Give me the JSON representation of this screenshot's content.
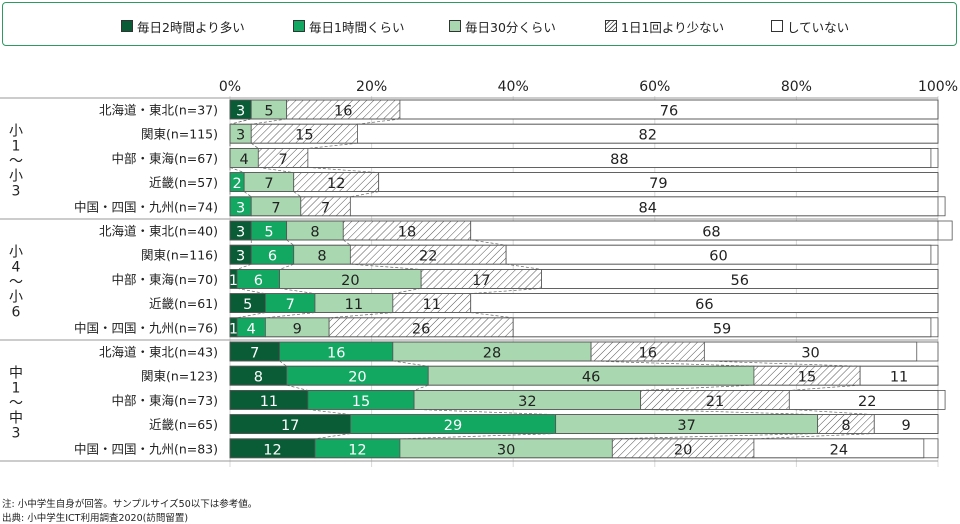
{
  "legend": [
    {
      "label": "毎日2時間より多い",
      "color": "#0a5c36"
    },
    {
      "label": "毎日1時間くらい",
      "color": "#12a862"
    },
    {
      "label": "毎日30分くらい",
      "color": "#a9d8b0"
    },
    {
      "label": "1日1回より少ない",
      "color": "hatch"
    },
    {
      "label": "していない",
      "color": "#ffffff"
    }
  ],
  "footnotes": {
    "note": "注: 小中学生自身が回答。サンプルサイズ50以下は参考値。",
    "source": "出典: 小中学生ICT利用調査2020(訪問留置)"
  },
  "chart_data": {
    "type": "bar",
    "orientation": "horizontal",
    "stacked": true,
    "unit": "%",
    "xlim": [
      0,
      100
    ],
    "xticks": [
      "0%",
      "20%",
      "40%",
      "60%",
      "80%",
      "100%"
    ],
    "series_names": [
      "毎日2時間より多い",
      "毎日1時間くらい",
      "毎日30分くらい",
      "1日1回より少ない",
      "していない"
    ],
    "groups": [
      {
        "label": "小1〜小3",
        "label_lines": [
          "小",
          "1",
          "〜",
          "小",
          "3"
        ],
        "rows": [
          {
            "label": "北海道・東北(n=37)",
            "values": [
              3,
              0,
              5,
              16,
              76
            ]
          },
          {
            "label": "関東(n=115)",
            "values": [
              0,
              0,
              3,
              15,
              82
            ]
          },
          {
            "label": "中部・東海(n=67)",
            "values": [
              0,
              0,
              4,
              7,
              88
            ]
          },
          {
            "label": "近畿(n=57)",
            "values": [
              0,
              2,
              7,
              12,
              79
            ]
          },
          {
            "label": "中国・四国・九州(n=74)",
            "values": [
              0,
              3,
              7,
              7,
              84
            ]
          }
        ]
      },
      {
        "label": "小4〜小6",
        "label_lines": [
          "小",
          "4",
          "〜",
          "小",
          "6"
        ],
        "rows": [
          {
            "label": "北海道・東北(n=40)",
            "values": [
              3,
              5,
              8,
              18,
              68
            ]
          },
          {
            "label": "関東(n=116)",
            "values": [
              3,
              6,
              8,
              22,
              60
            ]
          },
          {
            "label": "中部・東海(n=70)",
            "values": [
              1,
              6,
              20,
              17,
              56
            ]
          },
          {
            "label": "近畿(n=61)",
            "values": [
              5,
              7,
              11,
              11,
              66
            ]
          },
          {
            "label": "中国・四国・九州(n=76)",
            "values": [
              1,
              4,
              9,
              26,
              59
            ]
          }
        ]
      },
      {
        "label": "中1〜中3",
        "label_lines": [
          "中",
          "1",
          "〜",
          "中",
          "3"
        ],
        "rows": [
          {
            "label": "北海道・東北(n=43)",
            "values": [
              7,
              16,
              28,
              16,
              30
            ]
          },
          {
            "label": "関東(n=123)",
            "values": [
              8,
              20,
              46,
              15,
              11
            ]
          },
          {
            "label": "中部・東海(n=73)",
            "values": [
              11,
              15,
              32,
              21,
              22
            ]
          },
          {
            "label": "近畿(n=65)",
            "values": [
              17,
              29,
              37,
              8,
              9
            ]
          },
          {
            "label": "中国・四国・九州(n=83)",
            "values": [
              12,
              12,
              30,
              20,
              24
            ]
          }
        ]
      }
    ]
  }
}
